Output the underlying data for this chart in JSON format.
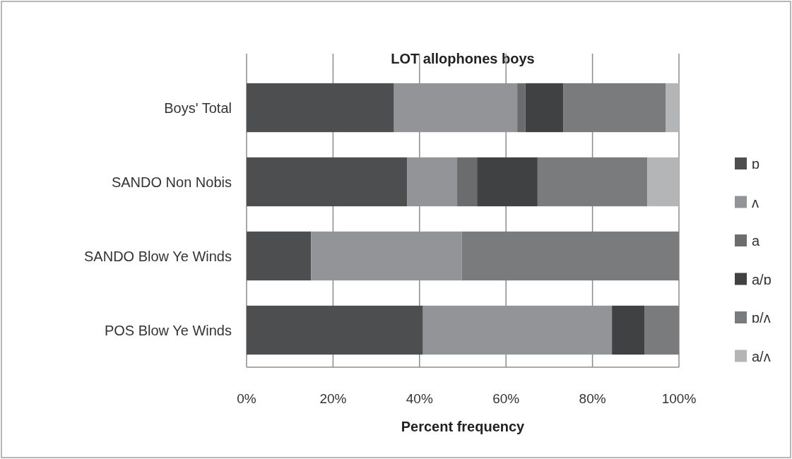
{
  "chart_data": {
    "type": "bar",
    "orientation": "horizontal",
    "stacked": true,
    "title": "LOT allophones boys",
    "xlabel": "Percent frequency",
    "categories": [
      "Boys' Total",
      "SANDO Non Nobis",
      "SANDO Blow Ye Winds",
      "POS Blow Ye Winds"
    ],
    "series": [
      {
        "name": "ɒ",
        "color": "#4d4e50",
        "values": [
          34.1,
          37.1,
          14.9,
          40.8
        ]
      },
      {
        "name": "ʌ",
        "color": "#939497",
        "values": [
          28.5,
          11.6,
          34.9,
          43.7
        ]
      },
      {
        "name": "a",
        "color": "#6b6c6e",
        "values": [
          1.9,
          4.6,
          0,
          0
        ]
      },
      {
        "name": "a/ɒ",
        "color": "#404143",
        "values": [
          8.8,
          14.0,
          0,
          7.6
        ]
      },
      {
        "name": "ɒ/ʌ",
        "color": "#7a7b7d",
        "values": [
          23.6,
          25.4,
          50.2,
          7.9
        ]
      },
      {
        "name": "a/ʌ",
        "color": "#b4b5b7",
        "values": [
          3.1,
          7.3,
          0,
          0
        ]
      }
    ],
    "xlim": [
      0,
      100
    ],
    "xticks": [
      {
        "value": 0,
        "label": "0%"
      },
      {
        "value": 20,
        "label": "20%"
      },
      {
        "value": 40,
        "label": "40%"
      },
      {
        "value": 60,
        "label": "60%"
      },
      {
        "value": 80,
        "label": "80%"
      },
      {
        "value": 100,
        "label": "100%"
      }
    ],
    "grid": "x",
    "legend": "right"
  }
}
